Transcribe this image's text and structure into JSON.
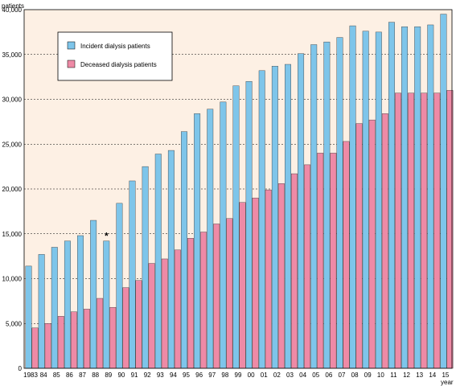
{
  "chart_data": {
    "type": "bar",
    "ylabel": "patients",
    "xlabel": "year",
    "ylim": [
      0,
      40000
    ],
    "grid": true,
    "legend_position": "top-left",
    "plot_background": "#fdf0e4",
    "categories": [
      "1983",
      "84",
      "85",
      "86",
      "87",
      "88",
      "89",
      "90",
      "91",
      "92",
      "93",
      "94",
      "95",
      "96",
      "97",
      "98",
      "99",
      "00",
      "01",
      "02",
      "03",
      "04",
      "05",
      "06",
      "07",
      "08",
      "09",
      "10",
      "11",
      "12",
      "13",
      "14",
      "15"
    ],
    "yticks": [
      0,
      5000,
      10000,
      15000,
      20000,
      25000,
      30000,
      35000,
      40000
    ],
    "ytick_labels": [
      "0",
      "5,000",
      "10,000",
      "15,000",
      "20,000",
      "25,000",
      "30,000",
      "35,000",
      "40,000"
    ],
    "series": [
      {
        "name": "Incident dialysis patients",
        "color": "#7ec5ea",
        "values": [
          11400,
          12700,
          13500,
          14200,
          14800,
          16500,
          14200,
          18400,
          20900,
          22500,
          23900,
          24300,
          26400,
          28400,
          28900,
          29700,
          31500,
          32000,
          33200,
          33700,
          33900,
          35100,
          36100,
          36400,
          36900,
          38200,
          37600,
          37500,
          38600,
          38100,
          38100,
          38300,
          39500
        ]
      },
      {
        "name": "Deceased dialysis patients",
        "color": "#ee8aa6",
        "values": [
          4500,
          5000,
          5800,
          6300,
          6600,
          7800,
          6800,
          9000,
          9800,
          11700,
          12200,
          13200,
          14500,
          15200,
          16100,
          16700,
          18500,
          19000,
          19900,
          20600,
          21700,
          22700,
          24000,
          24000,
          25300,
          27300,
          27700,
          28400,
          30700,
          30700,
          30700,
          30700,
          31000
        ]
      }
    ],
    "annotations": [
      {
        "text": "*",
        "category": "89"
      }
    ]
  }
}
